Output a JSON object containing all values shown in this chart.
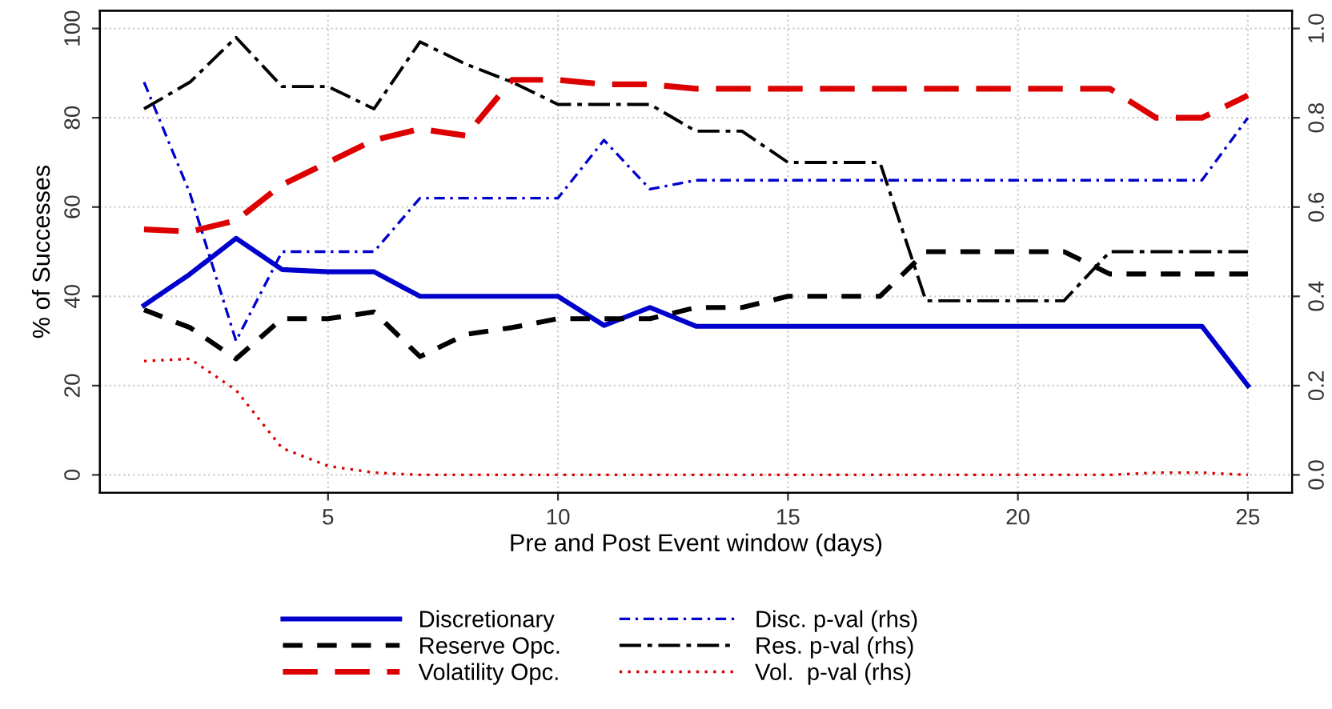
{
  "chart_data": {
    "type": "line",
    "xlabel": "Pre and Post Event window (days)",
    "ylabel": "% of Successes",
    "x": [
      1,
      2,
      3,
      4,
      5,
      6,
      7,
      8,
      9,
      10,
      11,
      12,
      13,
      14,
      15,
      16,
      17,
      18,
      19,
      20,
      21,
      22,
      23,
      24,
      25
    ],
    "xlim": [
      0.04,
      25.96
    ],
    "xticks": [
      5,
      10,
      15,
      20,
      25
    ],
    "ylim": [
      -4,
      104
    ],
    "yticks": [
      0,
      20,
      40,
      60,
      80,
      100
    ],
    "y2lim": [
      -0.04,
      1.04
    ],
    "y2ticks": [
      {
        "value": 0,
        "label": "0.0"
      },
      0.2,
      0.4,
      0.6,
      0.8,
      {
        "value": 1,
        "label": "1.0"
      }
    ],
    "grid": true,
    "legend": "bottom",
    "series": [
      {
        "name": "Discretionary",
        "color": "#0000cc",
        "line_style": "solid",
        "values": [
          38,
          45,
          53,
          46,
          45.5,
          45.5,
          40,
          40,
          40,
          40,
          33.5,
          37.5,
          33.3,
          33.3,
          33.3,
          33.3,
          33.3,
          33.3,
          33.3,
          33.3,
          33.3,
          33.3,
          33.3,
          33.3,
          20
        ]
      },
      {
        "name": "Reserve Opc.",
        "color": "#000000",
        "line_style": "dashed",
        "values": [
          37,
          33,
          26,
          35,
          35,
          36.5,
          26.5,
          31.5,
          33,
          35,
          35,
          35,
          37.5,
          37.5,
          40,
          40,
          40,
          50,
          50,
          50,
          50,
          45,
          45,
          45,
          45
        ]
      },
      {
        "name": "Volatility Opc.",
        "color": "#dd0000",
        "line_style": "longdash",
        "values": [
          55,
          54.5,
          57,
          65,
          70,
          75,
          77.5,
          76,
          88.5,
          88.5,
          87.5,
          87.5,
          86.5,
          86.5,
          86.5,
          86.5,
          86.5,
          86.5,
          86.5,
          86.5,
          86.5,
          86.5,
          80,
          80,
          85
        ]
      },
      {
        "name": "Disc. p-val (rhs)",
        "color": "#0000cc",
        "line_style": "dashdot",
        "axis": "y2",
        "values": [
          0.88,
          0.63,
          0.3,
          0.5,
          0.5,
          0.5,
          0.62,
          0.62,
          0.62,
          0.62,
          0.75,
          0.64,
          0.66,
          0.66,
          0.66,
          0.66,
          0.66,
          0.66,
          0.66,
          0.66,
          0.66,
          0.66,
          0.66,
          0.66,
          0.8
        ]
      },
      {
        "name": "Res. p-val (rhs)",
        "color": "#000000",
        "line_style": "longdashdot",
        "axis": "y2",
        "values": [
          0.82,
          0.88,
          0.98,
          0.87,
          0.87,
          0.82,
          0.97,
          0.92,
          0.88,
          0.83,
          0.83,
          0.83,
          0.77,
          0.77,
          0.7,
          0.7,
          0.7,
          0.39,
          0.39,
          0.39,
          0.39,
          0.5,
          0.5,
          0.5,
          0.5
        ]
      },
      {
        "name": "Vol.  p-val (rhs)",
        "color": "#dd0000",
        "line_style": "dotted",
        "axis": "y2",
        "values": [
          0.255,
          0.26,
          0.19,
          0.06,
          0.02,
          0.005,
          0,
          0,
          0,
          0,
          0,
          0,
          0,
          0,
          0,
          0,
          0,
          0,
          0,
          0,
          0,
          0,
          0.005,
          0.005,
          0
        ]
      }
    ]
  }
}
